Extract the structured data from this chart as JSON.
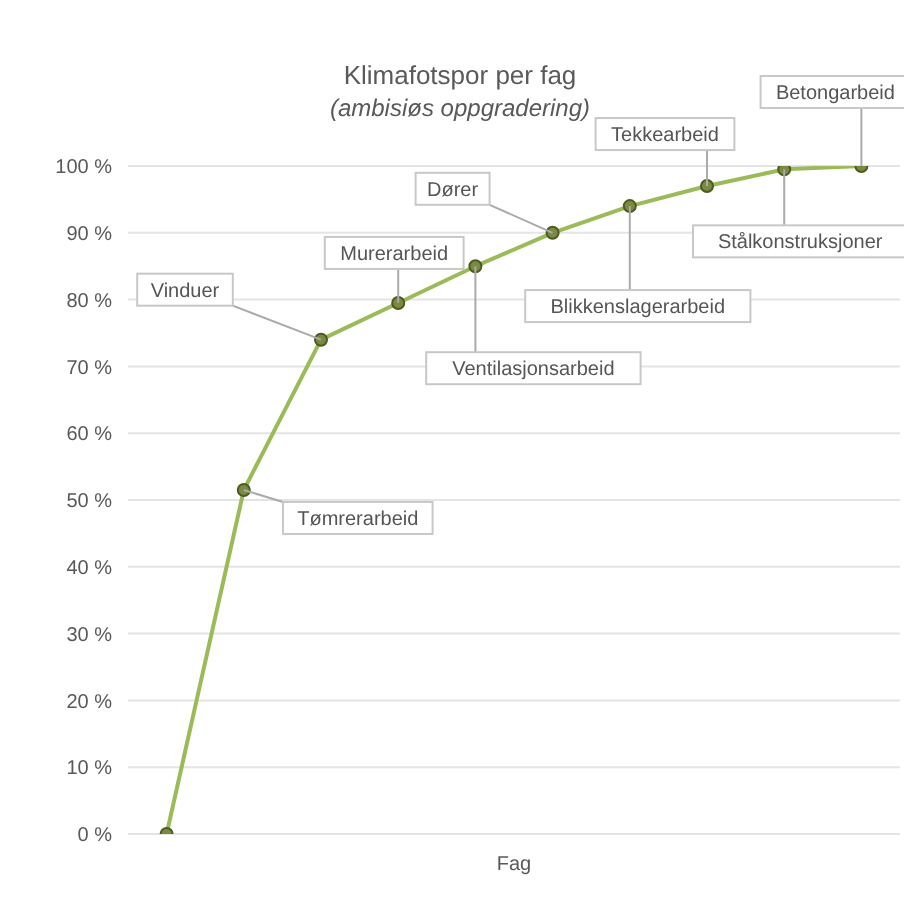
{
  "chart_data": {
    "type": "line",
    "title": "Klimafotspor per fag",
    "subtitle": "(ambisiøs oppgradering)",
    "xlabel": "Fag",
    "categories": [
      null,
      null,
      null,
      null,
      null,
      null,
      null,
      null,
      null,
      null
    ],
    "series": [
      {
        "color": "#9bbb59",
        "values": [
          0,
          51.5,
          74,
          79.5,
          85,
          90,
          94,
          97,
          99.5,
          100
        ]
      }
    ],
    "ylim": [
      0,
      100
    ],
    "yticks": [
      {
        "value": 0,
        "label": "0 %"
      },
      {
        "value": 10,
        "label": "10 %"
      },
      {
        "value": 20,
        "label": "20 %"
      },
      {
        "value": 30,
        "label": "30 %"
      },
      {
        "value": 40,
        "label": "40 %"
      },
      {
        "value": 50,
        "label": "50 %"
      },
      {
        "value": 60,
        "label": "60 %"
      },
      {
        "value": 70,
        "label": "70 %"
      },
      {
        "value": 80,
        "label": "80 %"
      },
      {
        "value": 90,
        "label": "90 %"
      },
      {
        "value": 100,
        "label": "100 %"
      }
    ],
    "grid": "y",
    "marker": "circle",
    "line_style": "solid",
    "tick_labels": "y",
    "legend": false,
    "annotations": [
      "Tømrerarbeid",
      "Vinduer",
      "Murerarbeid",
      "Ventilasjonsarbeid",
      "Dører",
      "Blikkenslagerarbeid",
      "Tekkearbeid",
      "Stålkonstruksjoner",
      "Betongarbeid"
    ]
  }
}
